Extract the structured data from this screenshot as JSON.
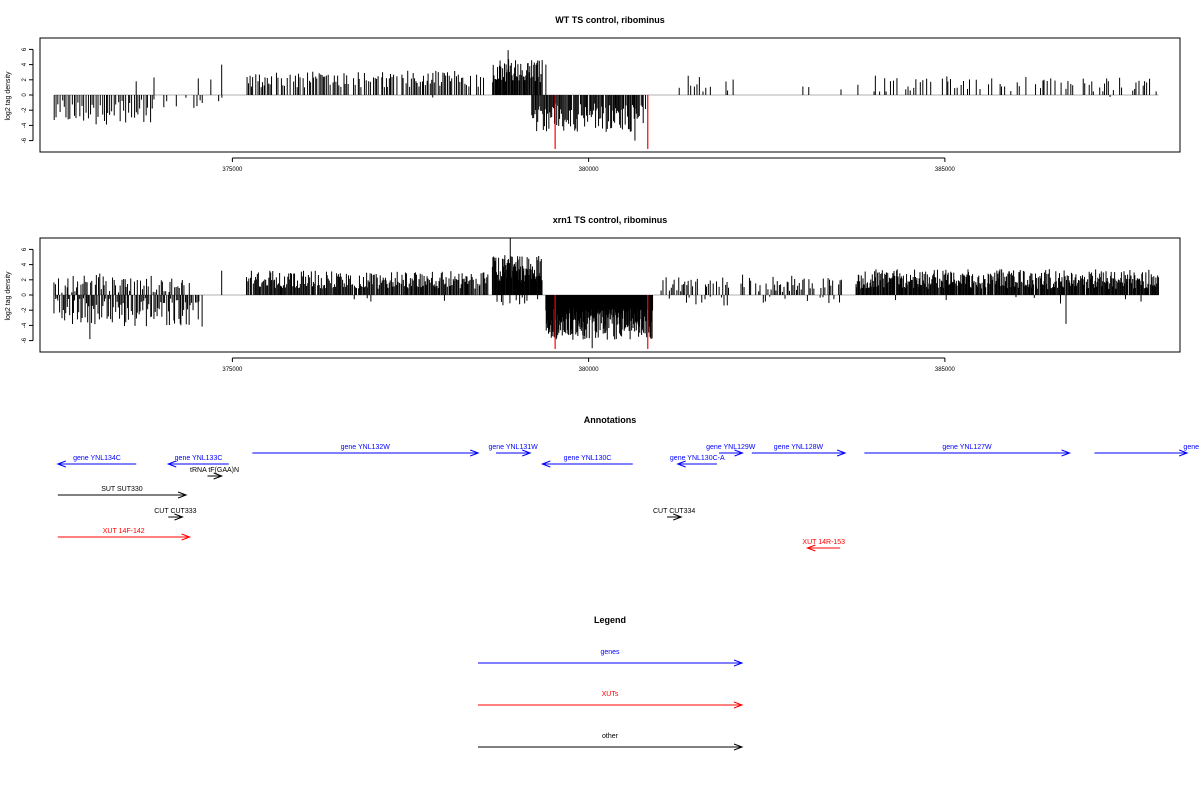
{
  "colors": {
    "black": "#000000",
    "red": "#ff0000",
    "blue": "#0000ff",
    "baseline": "#b0b0b0"
  },
  "chart_data": [
    {
      "type": "bar",
      "title": "WT TS control, ribominus",
      "ylabel": "log2 tag density",
      "xlim": [
        372300,
        388300
      ],
      "ylim": [
        -7.5,
        7.5
      ],
      "xticks": [
        "375000",
        "380000",
        "385000"
      ],
      "yticks": [
        "6",
        "4",
        "2",
        "0",
        "-2",
        "-4",
        "-6"
      ],
      "highlight_color": "#ff0000",
      "highlight_bars": [
        {
          "x": 379530,
          "y": -7.1
        },
        {
          "x": 380830,
          "y": -7.1
        }
      ],
      "segments": [
        {
          "from": 372500,
          "to": 373900,
          "sign": -1,
          "step": 28,
          "mean": 2.2,
          "amp": 1.7,
          "fill": 0.95
        },
        {
          "from": 374000,
          "to": 374900,
          "sign": -1,
          "step": 45,
          "mean": 1.0,
          "amp": 0.7,
          "fill": 0.35
        },
        {
          "from": 373100,
          "to": 374900,
          "sign": 1,
          "step": 80,
          "mean": 1.3,
          "amp": 0.9,
          "fill": 0.12
        },
        {
          "from": 375200,
          "to": 378550,
          "sign": 1,
          "step": 22,
          "mean": 2.1,
          "amp": 1.1,
          "fill": 0.85
        },
        {
          "from": 376000,
          "to": 378500,
          "sign": -1,
          "step": 90,
          "mean": 0.6,
          "amp": 0.3,
          "fill": 0.08
        },
        {
          "from": 378650,
          "to": 379350,
          "sign": 1,
          "step": 12,
          "mean": 3.2,
          "amp": 1.6,
          "fill": 1.0
        },
        {
          "from": 379200,
          "to": 380800,
          "sign": -1,
          "step": 14,
          "mean": 3.0,
          "amp": 1.9,
          "fill": 0.95
        },
        {
          "from": 381200,
          "to": 382200,
          "sign": 1,
          "step": 40,
          "mean": 1.6,
          "amp": 1.2,
          "fill": 0.45
        },
        {
          "from": 382300,
          "to": 383800,
          "sign": 1,
          "step": 70,
          "mean": 0.9,
          "amp": 0.5,
          "fill": 0.18
        },
        {
          "from": 384000,
          "to": 388000,
          "sign": 1,
          "step": 30,
          "mean": 1.5,
          "amp": 1.1,
          "fill": 0.55
        },
        {
          "from": 384200,
          "to": 387800,
          "sign": -1,
          "step": 130,
          "mean": 0.5,
          "amp": 0.4,
          "fill": 0.08
        }
      ],
      "spikes": [
        {
          "x": 374850,
          "y": 4.0
        },
        {
          "x": 373900,
          "y": 2.3
        },
        {
          "x": 373650,
          "y": 1.8
        },
        {
          "x": 378870,
          "y": 5.9
        },
        {
          "x": 380650,
          "y": -6.0
        },
        {
          "x": 379400,
          "y": 4.0
        }
      ]
    },
    {
      "type": "bar",
      "title": "xrn1 TS control, ribominus",
      "ylabel": "log2 tag density",
      "xlim": [
        372300,
        388300
      ],
      "ylim": [
        -7.5,
        7.5
      ],
      "xticks": [
        "375000",
        "380000",
        "385000"
      ],
      "yticks": [
        "6",
        "4",
        "2",
        "0",
        "-2",
        "-4",
        "-6"
      ],
      "highlight_color": "#ff0000",
      "highlight_bars": [
        {
          "x": 379530,
          "y": -7.1
        },
        {
          "x": 380830,
          "y": -7.1
        }
      ],
      "segments": [
        {
          "from": 372500,
          "to": 374600,
          "sign": -1,
          "step": 18,
          "mean": 2.3,
          "amp": 1.9,
          "fill": 0.9
        },
        {
          "from": 372500,
          "to": 374400,
          "sign": 1,
          "step": 22,
          "mean": 1.6,
          "amp": 1.3,
          "fill": 0.8
        },
        {
          "from": 375200,
          "to": 378600,
          "sign": 1,
          "step": 14,
          "mean": 2.0,
          "amp": 1.2,
          "fill": 0.95
        },
        {
          "from": 375200,
          "to": 378600,
          "sign": -1,
          "step": 60,
          "mean": 0.6,
          "amp": 0.4,
          "fill": 0.1
        },
        {
          "from": 378650,
          "to": 379350,
          "sign": 1,
          "step": 8,
          "mean": 3.5,
          "amp": 1.8,
          "fill": 1.0
        },
        {
          "from": 378650,
          "to": 379300,
          "sign": -1,
          "step": 30,
          "mean": 0.8,
          "amp": 0.6,
          "fill": 0.5
        },
        {
          "from": 379400,
          "to": 380900,
          "sign": -1,
          "step": 7,
          "mean": 3.8,
          "amp": 2.1,
          "fill": 1.0
        },
        {
          "from": 381000,
          "to": 383600,
          "sign": 1,
          "step": 22,
          "mean": 1.6,
          "amp": 1.2,
          "fill": 0.7
        },
        {
          "from": 381000,
          "to": 383600,
          "sign": -1,
          "step": 45,
          "mean": 0.8,
          "amp": 0.6,
          "fill": 0.35
        },
        {
          "from": 383750,
          "to": 388000,
          "sign": 1,
          "step": 11,
          "mean": 2.1,
          "amp": 1.3,
          "fill": 0.97
        },
        {
          "from": 383750,
          "to": 388000,
          "sign": -1,
          "step": 70,
          "mean": 0.7,
          "amp": 0.5,
          "fill": 0.15
        }
      ],
      "spikes": [
        {
          "x": 374850,
          "y": 3.2
        },
        {
          "x": 378900,
          "y": 7.5
        },
        {
          "x": 386700,
          "y": -3.8
        },
        {
          "x": 380050,
          "y": -7.0
        },
        {
          "x": 373000,
          "y": -5.8
        }
      ]
    },
    {
      "type": "annotation-track",
      "title": "Annotations",
      "xlim": [
        372300,
        388300
      ],
      "features": [
        {
          "label": "gene YNL134C",
          "color": "#0000ff",
          "from": 372550,
          "to": 373650,
          "dir": "left",
          "lane": 1,
          "label_pos": "above"
        },
        {
          "label": "gene YNL133C",
          "color": "#0000ff",
          "from": 374100,
          "to": 374950,
          "dir": "left",
          "lane": 1,
          "label_pos": "above"
        },
        {
          "label": "gene YNL132W",
          "color": "#0000ff",
          "from": 375280,
          "to": 378450,
          "dir": "right",
          "lane": 0,
          "label_pos": "above"
        },
        {
          "label": "gene YNL131W",
          "color": "#0000ff",
          "from": 378700,
          "to": 379180,
          "dir": "right",
          "lane": 0,
          "label_pos": "above"
        },
        {
          "label": "gene YNL130C",
          "color": "#0000ff",
          "from": 379350,
          "to": 380620,
          "dir": "left",
          "lane": 1,
          "label_pos": "above"
        },
        {
          "label": "gene YNL130C-A",
          "color": "#0000ff",
          "from": 381250,
          "to": 381800,
          "dir": "left",
          "lane": 1,
          "label_pos": "above"
        },
        {
          "label": "gene YNL129W",
          "color": "#0000ff",
          "from": 381830,
          "to": 382160,
          "dir": "right",
          "lane": 0,
          "label_pos": "above"
        },
        {
          "label": "gene YNL128W",
          "color": "#0000ff",
          "from": 382290,
          "to": 383600,
          "dir": "right",
          "lane": 0,
          "label_pos": "above"
        },
        {
          "label": "gene YNL127W",
          "color": "#0000ff",
          "from": 383870,
          "to": 386750,
          "dir": "right",
          "lane": 0,
          "label_pos": "above"
        },
        {
          "label": "gene",
          "color": "#0000ff",
          "from": 387100,
          "to": 388400,
          "dir": "right",
          "lane": 0,
          "label_pos": "above-right"
        },
        {
          "label": "tRNA tF(GAA)N",
          "color": "#000000",
          "from": 374650,
          "to": 374850,
          "dir": "right",
          "lane": 2,
          "label_pos": "above"
        },
        {
          "label": "SUT SUT330",
          "color": "#000000",
          "from": 372550,
          "to": 374350,
          "dir": "right",
          "lane": 3,
          "label_pos": "above"
        },
        {
          "label": "CUT CUT333",
          "color": "#000000",
          "from": 374100,
          "to": 374300,
          "dir": "right",
          "lane": 4,
          "label_pos": "above"
        },
        {
          "label": "CUT CUT334",
          "color": "#000000",
          "from": 381100,
          "to": 381300,
          "dir": "right",
          "lane": 4,
          "label_pos": "above"
        },
        {
          "label": "XUT 14F-142",
          "color": "#ff0000",
          "from": 372550,
          "to": 374400,
          "dir": "right",
          "lane": 5,
          "label_pos": "above"
        },
        {
          "label": "XUT 14R-153",
          "color": "#ff0000",
          "from": 383070,
          "to": 383530,
          "dir": "left",
          "lane": 6,
          "label_pos": "above"
        }
      ]
    },
    {
      "type": "legend",
      "title": "Legend",
      "entries": [
        {
          "name": "genes",
          "color": "#0000ff"
        },
        {
          "name": "XUTs",
          "color": "#ff0000"
        },
        {
          "name": "other",
          "color": "#000000"
        }
      ]
    }
  ]
}
